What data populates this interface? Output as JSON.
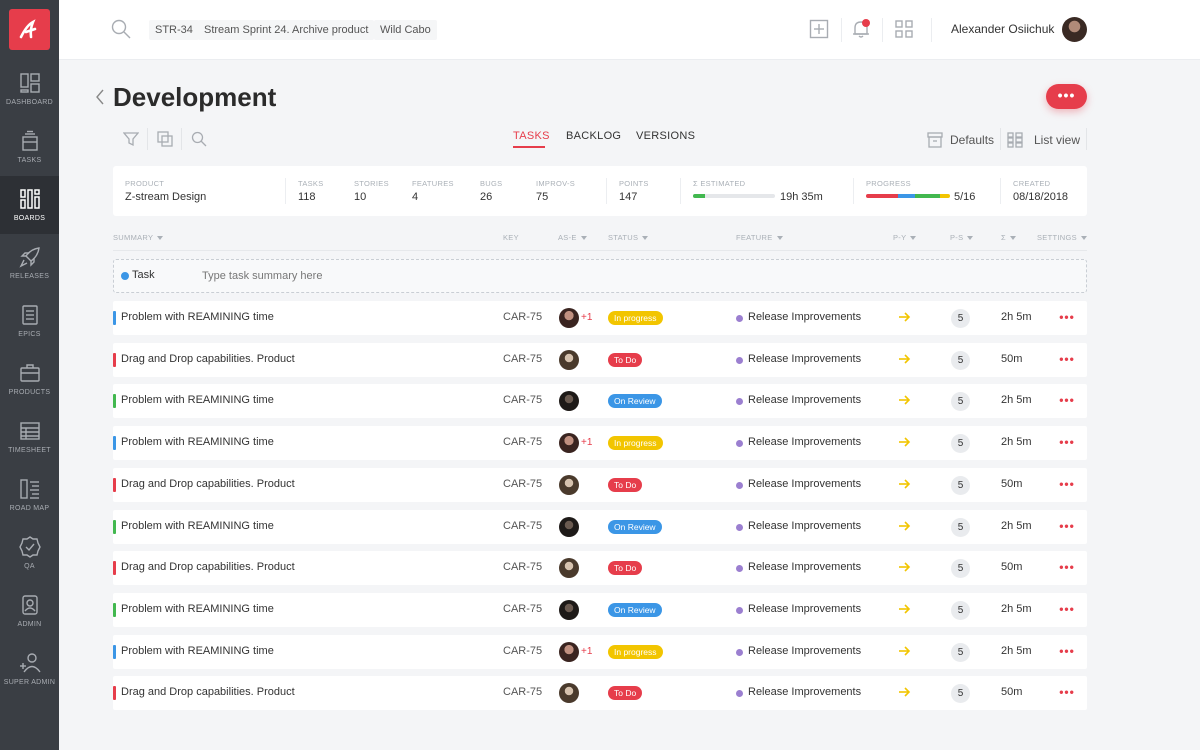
{
  "sidebar": {
    "items": [
      {
        "label": "DASHBOARD",
        "icon": "dashboard-icon"
      },
      {
        "label": "TASKS",
        "icon": "tasks-icon"
      },
      {
        "label": "BOARDS",
        "icon": "boards-icon"
      },
      {
        "label": "RELEASES",
        "icon": "rocket-icon"
      },
      {
        "label": "EPICS",
        "icon": "epics-icon"
      },
      {
        "label": "PRODUCTS",
        "icon": "briefcase-icon"
      },
      {
        "label": "TIMESHEET",
        "icon": "timesheet-icon"
      },
      {
        "label": "ROAD MAP",
        "icon": "roadmap-icon"
      },
      {
        "label": "QA",
        "icon": "qa-badge-icon"
      },
      {
        "label": "ADMIN",
        "icon": "admin-icon"
      },
      {
        "label": "SUPER ADMIN",
        "icon": "super-admin-icon"
      }
    ],
    "active_index": 2
  },
  "header": {
    "breadcrumbs": [
      "STR-34",
      "Stream Sprint 24. Archive product",
      "Wild Cabo"
    ],
    "user_name": "Alexander Osiichuk"
  },
  "page": {
    "title": "Development",
    "more_label": "•••"
  },
  "tabs": [
    {
      "label": "TASKS",
      "active": true
    },
    {
      "label": "BACKLOG",
      "active": false
    },
    {
      "label": "VERSIONS",
      "active": false
    }
  ],
  "toolbar": {
    "defaults_label": "Defaults",
    "list_view_label": "List view"
  },
  "stats": {
    "product_label": "PRODUCT",
    "product_value": "Z-stream Design",
    "tasks_label": "TASKS",
    "tasks_value": "118",
    "stories_label": "STORIES",
    "stories_value": "10",
    "features_label": "FEATURES",
    "features_value": "4",
    "bugs_label": "BUGS",
    "bugs_value": "26",
    "improvs_label": "IMPROV-S",
    "improvs_value": "75",
    "points_label": "POINTS",
    "points_value": "147",
    "estimated_label": "Σ ESTIMATED",
    "estimated_value": "19h 35m",
    "estimated_fraction": 0.15,
    "progress_label": "PROGRESS",
    "progress_value": "5/16",
    "progress_segments": [
      {
        "color": "#e63d4b",
        "fraction": 0.38
      },
      {
        "color": "#3b96e6",
        "fraction": 0.2
      },
      {
        "color": "#42b84f",
        "fraction": 0.3
      },
      {
        "color": "#f2c500",
        "fraction": 0.12
      }
    ],
    "created_label": "CREATED",
    "created_value": "08/18/2018"
  },
  "columns": {
    "summary": "SUMMARY",
    "key": "KEY",
    "ase": "AS-E",
    "status": "STATUS",
    "feature": "FEATURE",
    "py": "P-Y",
    "ps": "P-S",
    "sigma": "Σ",
    "settings": "SETTINGS"
  },
  "new_task": {
    "type_label": "Task",
    "placeholder": "Type task summary here"
  },
  "status_colors": {
    "In progress": "#f2c500",
    "To Do": "#e63d4b",
    "On Review": "#3b96e6"
  },
  "type_colors": {
    "blue": "#3b96e6",
    "red": "#e63d4b",
    "green": "#42b84f"
  },
  "rows": [
    {
      "type": "blue",
      "summary": "Problem with REAMINING time",
      "key": "CAR-75",
      "extra": "+1",
      "status": "In progress",
      "feature": "Release Improvements",
      "ps": "5",
      "time": "2h 5m"
    },
    {
      "type": "red",
      "summary": "Drag and Drop capabilities. Product",
      "key": "CAR-75",
      "extra": "",
      "status": "To Do",
      "feature": "Release Improvements",
      "ps": "5",
      "time": "50m"
    },
    {
      "type": "green",
      "summary": "Problem with REAMINING time",
      "key": "CAR-75",
      "extra": "",
      "status": "On Review",
      "feature": "Release Improvements",
      "ps": "5",
      "time": "2h 5m"
    },
    {
      "type": "blue",
      "summary": "Problem with REAMINING time",
      "key": "CAR-75",
      "extra": "+1",
      "status": "In progress",
      "feature": "Release Improvements",
      "ps": "5",
      "time": "2h 5m"
    },
    {
      "type": "red",
      "summary": "Drag and Drop capabilities. Product",
      "key": "CAR-75",
      "extra": "",
      "status": "To Do",
      "feature": "Release Improvements",
      "ps": "5",
      "time": "50m"
    },
    {
      "type": "green",
      "summary": "Problem with REAMINING time",
      "key": "CAR-75",
      "extra": "",
      "status": "On Review",
      "feature": "Release Improvements",
      "ps": "5",
      "time": "2h 5m"
    },
    {
      "type": "red",
      "summary": "Drag and Drop capabilities. Product",
      "key": "CAR-75",
      "extra": "",
      "status": "To Do",
      "feature": "Release Improvements",
      "ps": "5",
      "time": "50m"
    },
    {
      "type": "green",
      "summary": "Problem with REAMINING time",
      "key": "CAR-75",
      "extra": "",
      "status": "On Review",
      "feature": "Release Improvements",
      "ps": "5",
      "time": "2h 5m"
    },
    {
      "type": "blue",
      "summary": "Problem with REAMINING time",
      "key": "CAR-75",
      "extra": "+1",
      "status": "In progress",
      "feature": "Release Improvements",
      "ps": "5",
      "time": "2h 5m"
    },
    {
      "type": "red",
      "summary": "Drag and Drop capabilities. Product",
      "key": "CAR-75",
      "extra": "",
      "status": "To Do",
      "feature": "Release Improvements",
      "ps": "5",
      "time": "50m"
    }
  ]
}
